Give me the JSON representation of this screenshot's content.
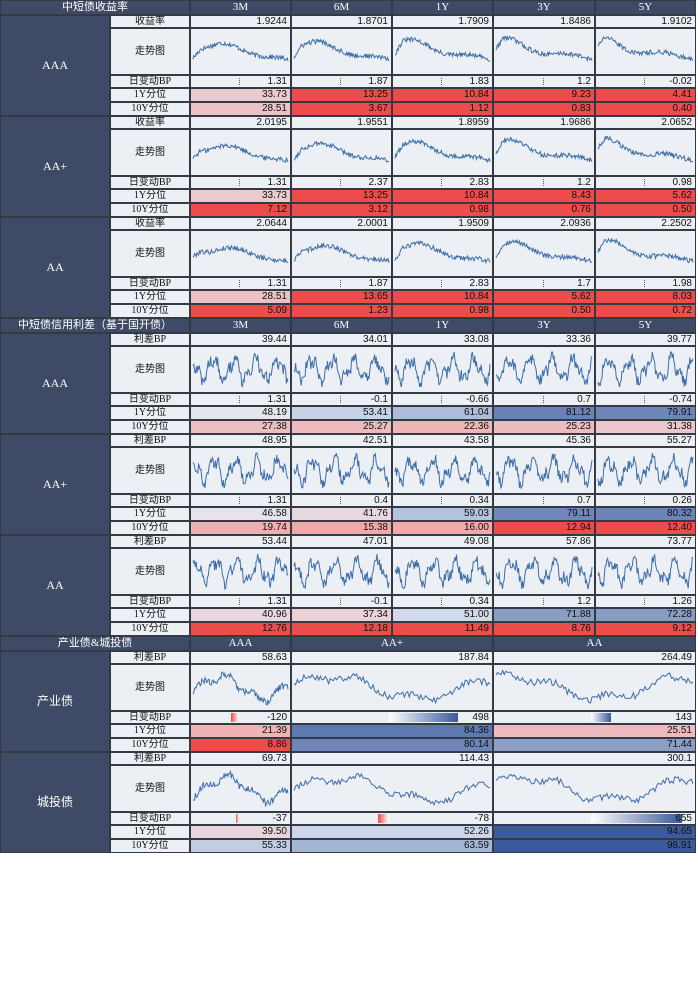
{
  "colors": {
    "header": "#3f4b66",
    "cell": "#eceff4",
    "red": "#ee4b4b",
    "blue": "#3a5a9c",
    "line": "#3d6ea8"
  },
  "sec1": {
    "title": "中短债收益率",
    "cols": [
      "3M",
      "6M",
      "1Y",
      "3Y",
      "5Y"
    ],
    "groups": [
      {
        "name": "AAA",
        "rows": [
          {
            "label": "收益率",
            "values": [
              "1.9244",
              "1.8701",
              "1.7909",
              "1.8486",
              "1.9102"
            ]
          },
          {
            "label": "走势图"
          },
          {
            "label": "日变动BP",
            "values": [
              "1.31",
              "1.87",
              "1.83",
              "1.2",
              "-0.02"
            ]
          },
          {
            "label": "1Y分位",
            "values": [
              "33.73",
              "13.25",
              "10.84",
              "9.23",
              "4.41"
            ],
            "pct": [
              33.73,
              13.25,
              10.84,
              9.23,
              4.41
            ]
          },
          {
            "label": "10Y分位",
            "values": [
              "28.51",
              "3.67",
              "1.12",
              "0.83",
              "0.40"
            ],
            "pct": [
              28.51,
              3.67,
              1.12,
              0.83,
              0.4
            ]
          }
        ]
      },
      {
        "name": "AA+",
        "rows": [
          {
            "label": "收益率",
            "values": [
              "2.0195",
              "1.9551",
              "1.8959",
              "1.9686",
              "2.0652"
            ]
          },
          {
            "label": "走势图"
          },
          {
            "label": "日变动BP",
            "values": [
              "1.31",
              "2.37",
              "2.83",
              "1.2",
              "0.98"
            ]
          },
          {
            "label": "1Y分位",
            "values": [
              "33.73",
              "13.25",
              "10.84",
              "8.43",
              "5.62"
            ],
            "pct": [
              33.73,
              13.25,
              10.84,
              8.43,
              5.62
            ]
          },
          {
            "label": "10Y分位",
            "values": [
              "7.12",
              "3.12",
              "0.98",
              "0.76",
              "0.50"
            ],
            "pct": [
              7.12,
              3.12,
              0.98,
              0.76,
              0.5
            ]
          }
        ]
      },
      {
        "name": "AA",
        "rows": [
          {
            "label": "收益率",
            "values": [
              "2.0644",
              "2.0001",
              "1.9509",
              "2.0936",
              "2.2502"
            ]
          },
          {
            "label": "走势图"
          },
          {
            "label": "日变动BP",
            "values": [
              "1.31",
              "1.87",
              "2.83",
              "1.7",
              "1.98"
            ]
          },
          {
            "label": "1Y分位",
            "values": [
              "28.51",
              "13.65",
              "10.84",
              "5.62",
              "8.03"
            ],
            "pct": [
              28.51,
              13.65,
              10.84,
              5.62,
              8.03
            ]
          },
          {
            "label": "10Y分位",
            "values": [
              "5.09",
              "1.23",
              "0.98",
              "0.50",
              "0.72"
            ],
            "pct": [
              5.09,
              1.23,
              0.98,
              0.5,
              0.72
            ]
          }
        ]
      }
    ]
  },
  "sec2": {
    "title": "中短债信用利差（基于国开债）",
    "cols": [
      "3M",
      "6M",
      "1Y",
      "3Y",
      "5Y"
    ],
    "groups": [
      {
        "name": "AAA",
        "rows": [
          {
            "label": "利差BP",
            "values": [
              "39.44",
              "34.01",
              "33.08",
              "33.36",
              "39.77"
            ]
          },
          {
            "label": "走势图"
          },
          {
            "label": "日变动BP",
            "values": [
              "1.31",
              "-0.1",
              "-0.66",
              "0.7",
              "-0.74"
            ]
          },
          {
            "label": "1Y分位",
            "values": [
              "48.19",
              "53.41",
              "61.04",
              "81.12",
              "79.91"
            ],
            "pct": [
              48.19,
              53.41,
              61.04,
              81.12,
              79.91
            ]
          },
          {
            "label": "10Y分位",
            "values": [
              "27.38",
              "25.27",
              "22.36",
              "25.23",
              "31.38"
            ],
            "pct": [
              27.38,
              25.27,
              22.36,
              25.23,
              31.38
            ]
          }
        ]
      },
      {
        "name": "AA+",
        "rows": [
          {
            "label": "利差BP",
            "values": [
              "48.95",
              "42.51",
              "43.58",
              "45.36",
              "55.27"
            ]
          },
          {
            "label": "走势图"
          },
          {
            "label": "日变动BP",
            "values": [
              "1.31",
              "0.4",
              "0.34",
              "0.7",
              "0.26"
            ]
          },
          {
            "label": "1Y分位",
            "values": [
              "46.58",
              "41.76",
              "59.03",
              "79.11",
              "80.32"
            ],
            "pct": [
              46.58,
              41.76,
              59.03,
              79.11,
              80.32
            ]
          },
          {
            "label": "10Y分位",
            "values": [
              "19.74",
              "15.38",
              "16.00",
              "12.94",
              "12.40"
            ],
            "pct": [
              19.74,
              15.38,
              16.0,
              12.94,
              12.4
            ]
          }
        ]
      },
      {
        "name": "AA",
        "rows": [
          {
            "label": "利差BP",
            "values": [
              "53.44",
              "47.01",
              "49.08",
              "57.86",
              "73.77"
            ]
          },
          {
            "label": "走势图"
          },
          {
            "label": "日变动BP",
            "values": [
              "1.31",
              "-0.1",
              "0.34",
              "1.2",
              "1.26"
            ]
          },
          {
            "label": "1Y分位",
            "values": [
              "40.96",
              "37.34",
              "51.00",
              "71.88",
              "72.28"
            ],
            "pct": [
              40.96,
              37.34,
              51.0,
              71.88,
              72.28
            ]
          },
          {
            "label": "10Y分位",
            "values": [
              "12.76",
              "12.18",
              "11.49",
              "8.76",
              "9.12"
            ],
            "pct": [
              12.76,
              12.18,
              11.49,
              8.76,
              9.12
            ]
          }
        ]
      }
    ]
  },
  "sec3": {
    "title": "产业债&城投债",
    "cols": [
      "AAA",
      "AA+",
      "AA"
    ],
    "groups": [
      {
        "name": "产业债",
        "rows": [
          {
            "label": "利差BP",
            "values": [
              "58.63",
              "187.84",
              "264.49"
            ]
          },
          {
            "label": "走势图"
          },
          {
            "label": "日变动BP",
            "values": [
              "-120",
              "498",
              "143"
            ],
            "change": [
              -120,
              498,
              143
            ]
          },
          {
            "label": "1Y分位",
            "values": [
              "21.39",
              "84.36",
              "25.51"
            ],
            "pct": [
              21.39,
              84.36,
              25.51
            ]
          },
          {
            "label": "10Y分位",
            "values": [
              "8.86",
              "80.14",
              "71.44"
            ],
            "pct": [
              8.86,
              80.14,
              71.44
            ]
          }
        ]
      },
      {
        "name": "城投债",
        "rows": [
          {
            "label": "利差BP",
            "values": [
              "69.73",
              "114.43",
              "300.1"
            ]
          },
          {
            "label": "走势图"
          },
          {
            "label": "日变动BP",
            "values": [
              "-37",
              "-78",
              "655"
            ],
            "change": [
              -37,
              -78,
              655
            ]
          },
          {
            "label": "1Y分位",
            "values": [
              "39.50",
              "52.26",
              "94.65"
            ],
            "pct": [
              39.5,
              52.26,
              94.65
            ]
          },
          {
            "label": "10Y分位",
            "values": [
              "55.33",
              "63.59",
              "98.91"
            ],
            "pct": [
              55.33,
              63.59,
              98.91
            ]
          }
        ]
      }
    ]
  },
  "chart_data": [
    {
      "type": "table",
      "title": "中短债收益率",
      "categories": [
        "3M",
        "6M",
        "1Y",
        "3Y",
        "5Y"
      ]
    },
    {
      "type": "table",
      "title": "中短债信用利差（基于国开债）",
      "categories": [
        "3M",
        "6M",
        "1Y",
        "3Y",
        "5Y"
      ]
    },
    {
      "type": "table",
      "title": "产业债&城投债",
      "categories": [
        "AAA",
        "AA+",
        "AA"
      ]
    }
  ]
}
